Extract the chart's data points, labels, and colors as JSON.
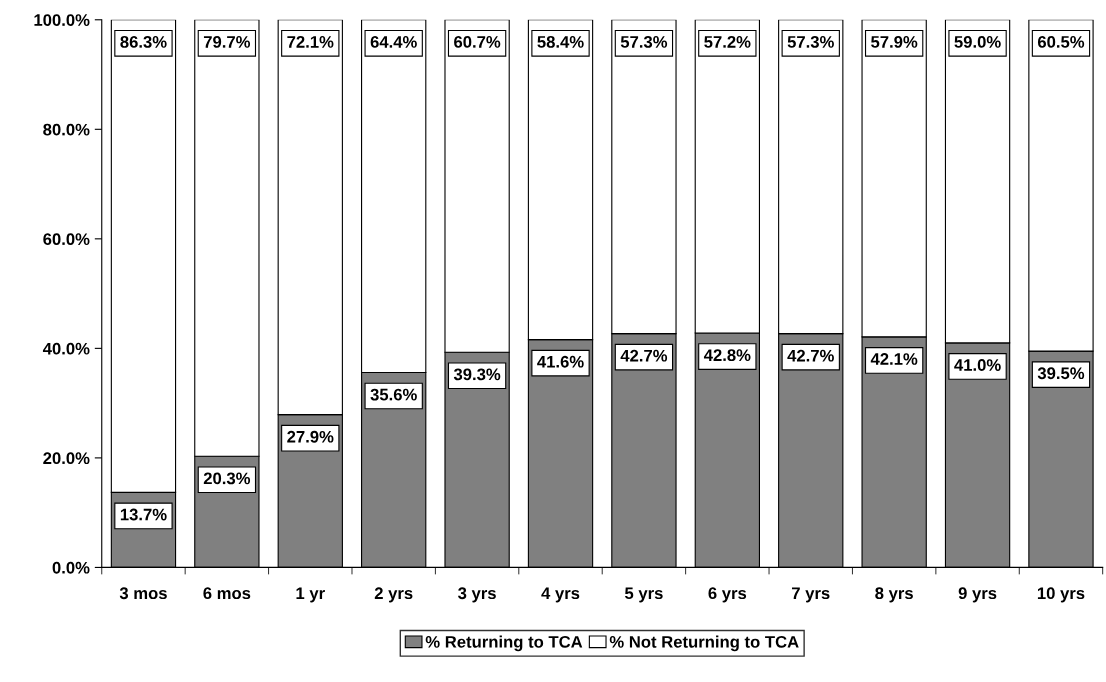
{
  "chart_data": {
    "type": "bar",
    "stacked": true,
    "categories": [
      "3 mos",
      "6 mos",
      "1 yr",
      "2 yrs",
      "3 yrs",
      "4 yrs",
      "5 yrs",
      "6 yrs",
      "7 yrs",
      "8 yrs",
      "9 yrs",
      "10 yrs"
    ],
    "series": [
      {
        "name": "% Returning to TCA",
        "color": "#808080",
        "values": [
          13.7,
          20.3,
          27.9,
          35.6,
          39.3,
          41.6,
          42.7,
          42.8,
          42.7,
          42.1,
          41.0,
          39.5
        ],
        "value_labels": [
          "13.7%",
          "20.3%",
          "27.9%",
          "35.6%",
          "39.3%",
          "41.6%",
          "42.7%",
          "42.8%",
          "42.7%",
          "42.1%",
          "41.0%",
          "39.5%"
        ]
      },
      {
        "name": "% Not Returning to TCA",
        "color": "#ffffff",
        "values": [
          86.3,
          79.7,
          72.1,
          64.4,
          60.7,
          58.4,
          57.3,
          57.2,
          57.3,
          57.9,
          59.0,
          60.5
        ],
        "value_labels": [
          "86.3%",
          "79.7%",
          "72.1%",
          "64.4%",
          "60.7%",
          "58.4%",
          "57.3%",
          "57.2%",
          "57.3%",
          "57.9%",
          "59.0%",
          "60.5%"
        ]
      }
    ],
    "ylim": [
      0,
      100
    ],
    "yticks": [
      {
        "value": 0,
        "label": "0.0%"
      },
      {
        "value": 20,
        "label": "20.0%"
      },
      {
        "value": 40,
        "label": "40.0%"
      },
      {
        "value": 60,
        "label": "60.0%"
      },
      {
        "value": 80,
        "label": "80.0%"
      },
      {
        "value": 100,
        "label": "100.0%"
      }
    ],
    "grid": false,
    "legend": "bottom"
  }
}
